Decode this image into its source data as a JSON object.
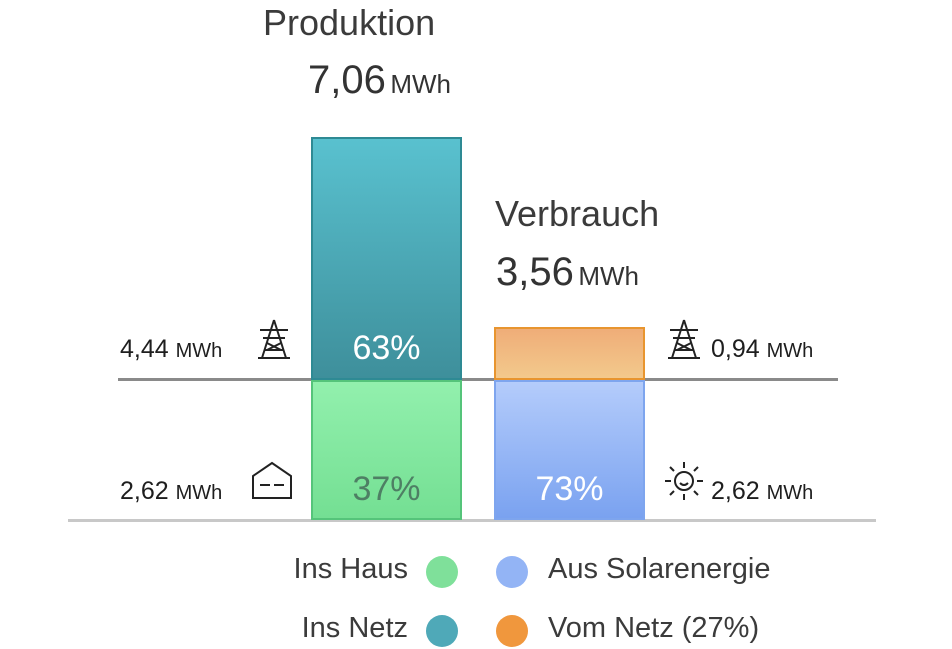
{
  "production": {
    "title": "Produktion",
    "value": "7,06",
    "unit": "MWh",
    "grid_pct": "63%",
    "house_pct": "37%",
    "grid_label_value": "4,44",
    "grid_label_unit": "MWh",
    "house_label_value": "2,62",
    "house_label_unit": "MWh"
  },
  "consumption": {
    "title": "Verbrauch",
    "value": "3,56",
    "unit": "MWh",
    "solar_pct": "73%",
    "grid_label_value": "0,94",
    "grid_label_unit": "MWh",
    "solar_label_value": "2,62",
    "solar_label_unit": "MWh"
  },
  "legend": {
    "ins_haus": "Ins Haus",
    "ins_netz": "Ins Netz",
    "aus_solar": "Aus Solarenergie",
    "vom_netz": "Vom Netz (27%)"
  },
  "colors": {
    "ins_haus": "#7fe09a",
    "ins_netz": "#4fa9b8",
    "aus_solar": "#93b4f5",
    "vom_netz": "#f0973d"
  },
  "chart_data": {
    "type": "bar",
    "series": [
      {
        "name": "Ins Haus",
        "category": "Produktion",
        "value": 2.62,
        "percent": 37
      },
      {
        "name": "Ins Netz",
        "category": "Produktion",
        "value": 4.44,
        "percent": 63
      },
      {
        "name": "Aus Solarenergie",
        "category": "Verbrauch",
        "value": 2.62,
        "percent": 73
      },
      {
        "name": "Vom Netz",
        "category": "Verbrauch",
        "value": 0.94,
        "percent": 27
      }
    ],
    "categories": [
      "Produktion",
      "Verbrauch"
    ],
    "totals": [
      7.06,
      3.56
    ],
    "unit": "MWh"
  }
}
